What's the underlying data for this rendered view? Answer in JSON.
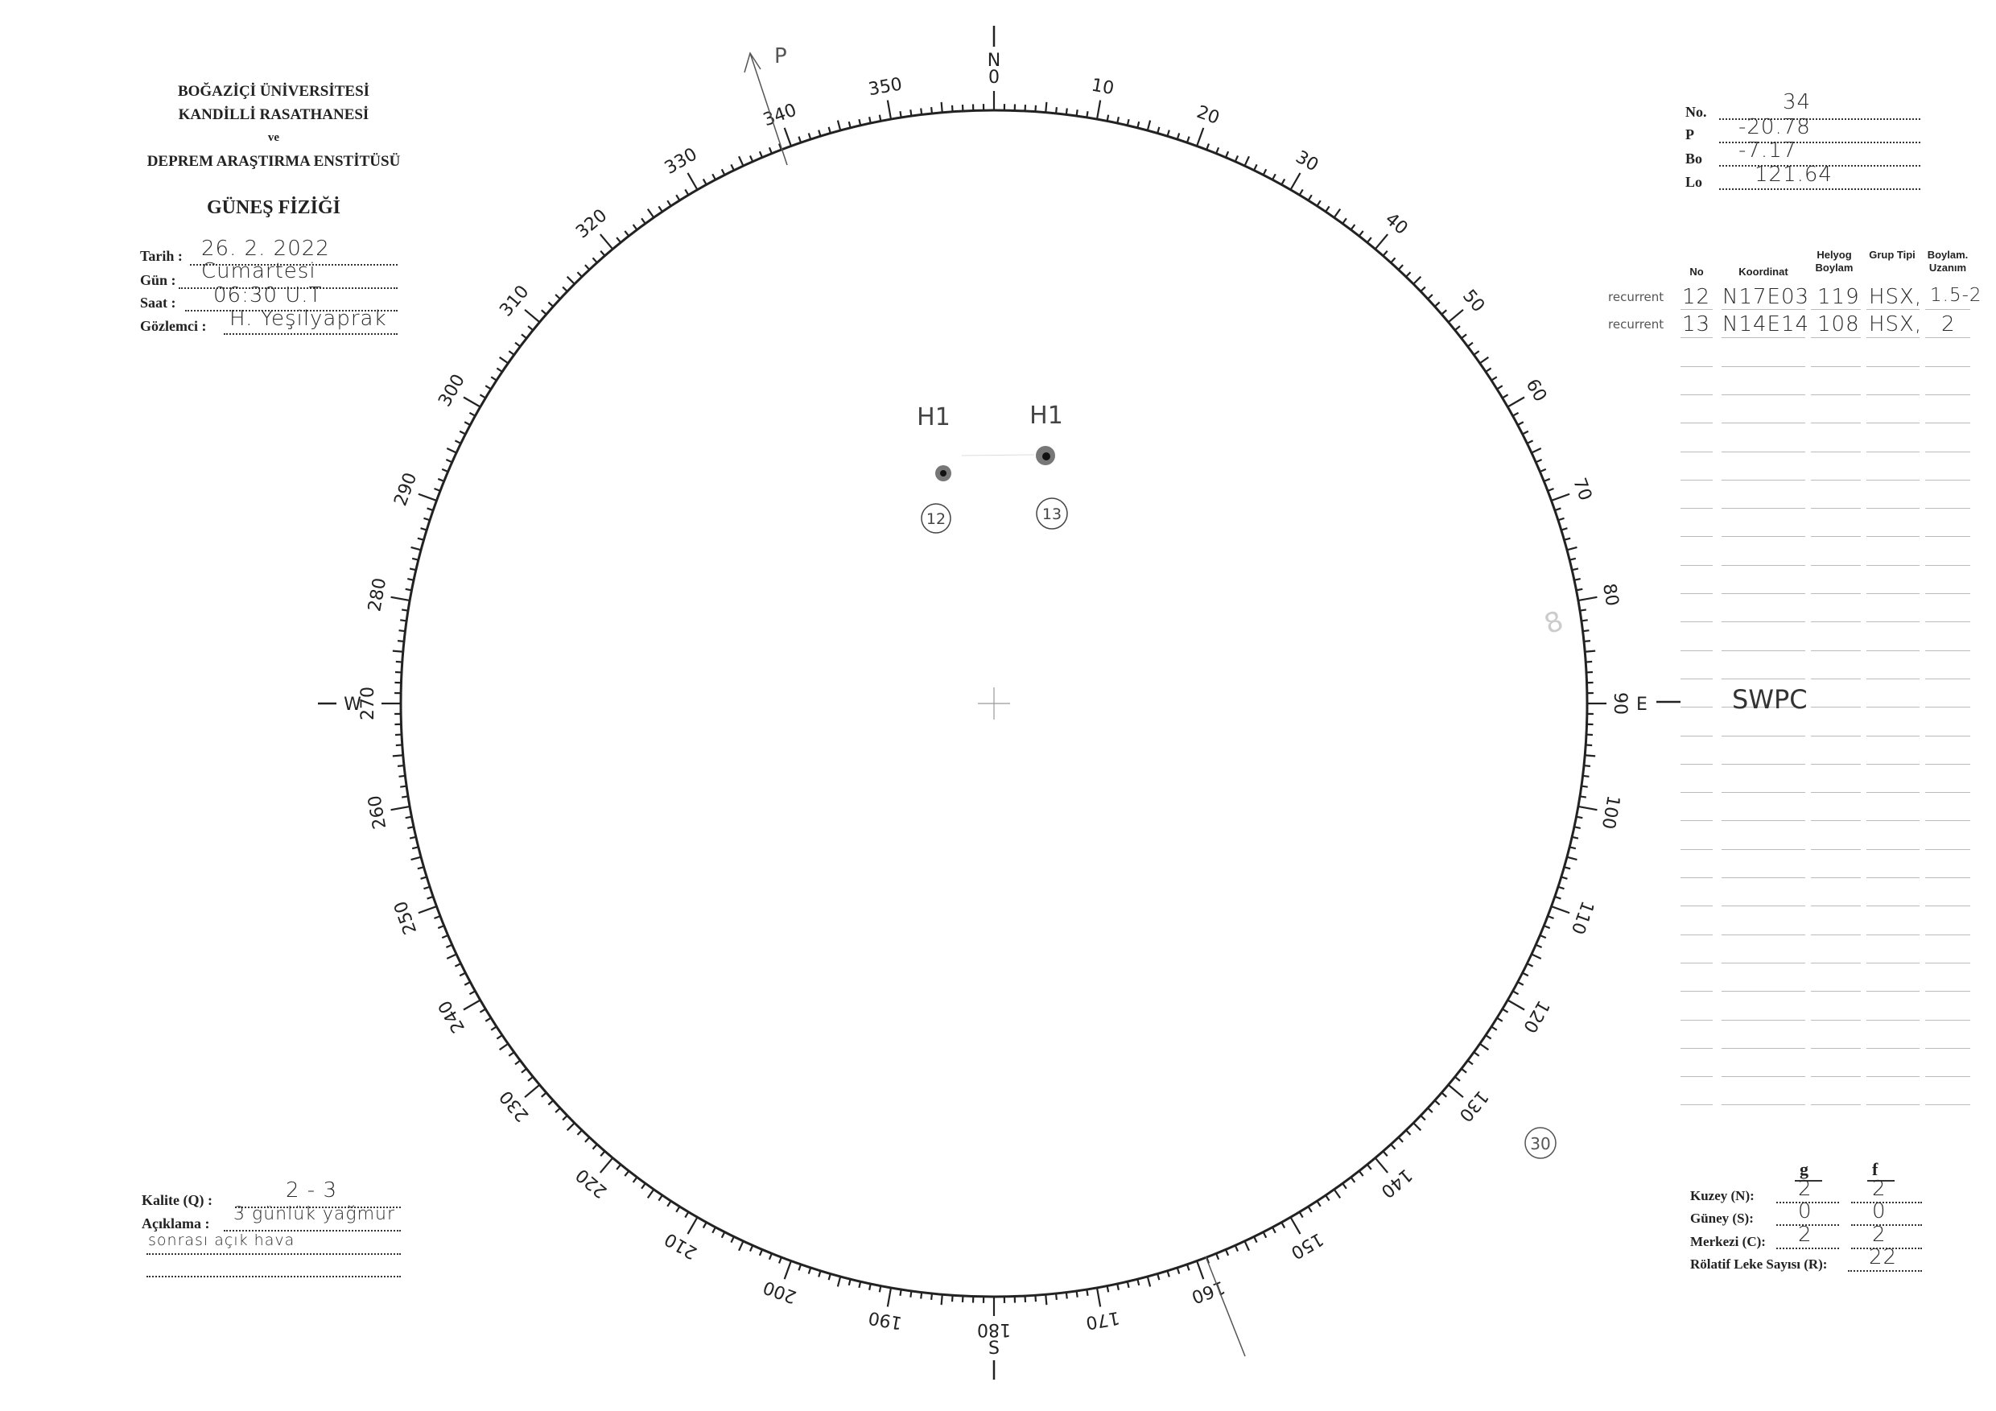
{
  "header": {
    "institution": [
      "BOĞAZİÇİ ÜNİVERSİTESİ",
      "KANDİLLİ RASATHANESİ",
      "ve",
      "DEPREM ARAŞTIRMA ENSTİTÜSÜ"
    ],
    "department": "GÜNEŞ FİZİĞİ"
  },
  "observation": [
    {
      "label": "Tarih :",
      "value": "26. 2. 2022"
    },
    {
      "label": "Gün :",
      "value": "Cumartesi"
    },
    {
      "label": "Saat :",
      "value": "06:30 U.T"
    },
    {
      "label": "Gözlemci :",
      "value": "H. Yeşilyaprak"
    }
  ],
  "parameters": [
    {
      "label": "No.",
      "value": "34"
    },
    {
      "label": "P",
      "value": "-20.78"
    },
    {
      "label": "Bo",
      "value": "-7.17"
    },
    {
      "label": "Lo",
      "value": "121.64"
    }
  ],
  "table": {
    "headers": [
      "No",
      "Koordinat",
      "Helyog Boylam",
      "Grup Tipi",
      "Boylam. Uzanım"
    ],
    "rows": [
      {
        "note": "recurrent",
        "no": "12",
        "koordinat": "N17E03",
        "boylam": "119",
        "tip": "HSX,",
        "uzanim": "1.5-2"
      },
      {
        "note": "recurrent",
        "no": "13",
        "koordinat": "N14E14",
        "boylam": "108",
        "tip": "HSX,",
        "uzanim": "2"
      }
    ]
  },
  "quality": {
    "kalite_label": "Kalite (Q) :",
    "kalite_value": "2 - 3",
    "aciklama_label": "Açıklama :",
    "aciklama_line1": "3 günlük yağmur",
    "aciklama_line2": "sonrası açık hava"
  },
  "summary": {
    "col_g": "g",
    "col_f": "f",
    "rows": [
      {
        "label": "Kuzey (N):",
        "g": "2",
        "f": "2"
      },
      {
        "label": "Güney (S):",
        "g": "0",
        "f": "0"
      },
      {
        "label": "Merkezi (C):",
        "g": "2",
        "f": "2"
      }
    ],
    "relative_label": "Rölatif Leke Sayısı (R):",
    "relative_value": "22"
  },
  "disk": {
    "scale_labels": [
      "0",
      "10",
      "20",
      "30",
      "40",
      "50",
      "60",
      "70",
      "80",
      "90",
      "100",
      "110",
      "120",
      "130",
      "140",
      "150",
      "160",
      "170",
      "180",
      "190",
      "200",
      "210",
      "220",
      "230",
      "240",
      "250",
      "260",
      "270",
      "280",
      "290",
      "300",
      "310",
      "320",
      "330",
      "340",
      "350"
    ],
    "directions": {
      "north": "N",
      "east": "E",
      "south": "S",
      "west": "W"
    },
    "spots": [
      {
        "group": "12",
        "class_label": "H1"
      },
      {
        "group": "13",
        "class_label": "H1"
      }
    ],
    "annotations": {
      "p_axis": "P",
      "east_note": "SWPC",
      "circled_note": "30",
      "faint_note": "8"
    }
  }
}
